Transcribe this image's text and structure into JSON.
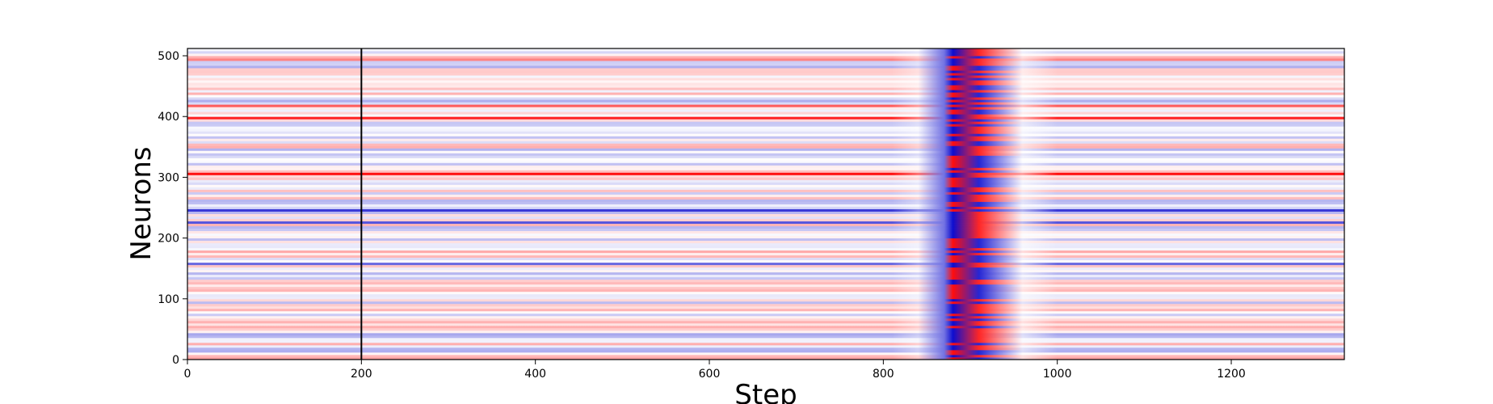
{
  "chart_data": {
    "type": "heatmap",
    "title": "",
    "xlabel": "Step",
    "ylabel": "Neurons",
    "xlim": [
      0,
      1330
    ],
    "ylim": [
      0,
      512
    ],
    "x_ticks": [
      0,
      200,
      400,
      600,
      800,
      1000,
      1200
    ],
    "y_ticks": [
      0,
      100,
      200,
      300,
      400,
      500
    ],
    "colormap": {
      "low": "#0000cc",
      "mid": "#ffffff",
      "high": "#ff0000"
    },
    "vertical_marker": {
      "x": 200,
      "color": "#000000"
    },
    "event_band": {
      "x_start": 830,
      "x_peak": 900,
      "x_end": 960
    },
    "grid": false,
    "legend": "none"
  }
}
